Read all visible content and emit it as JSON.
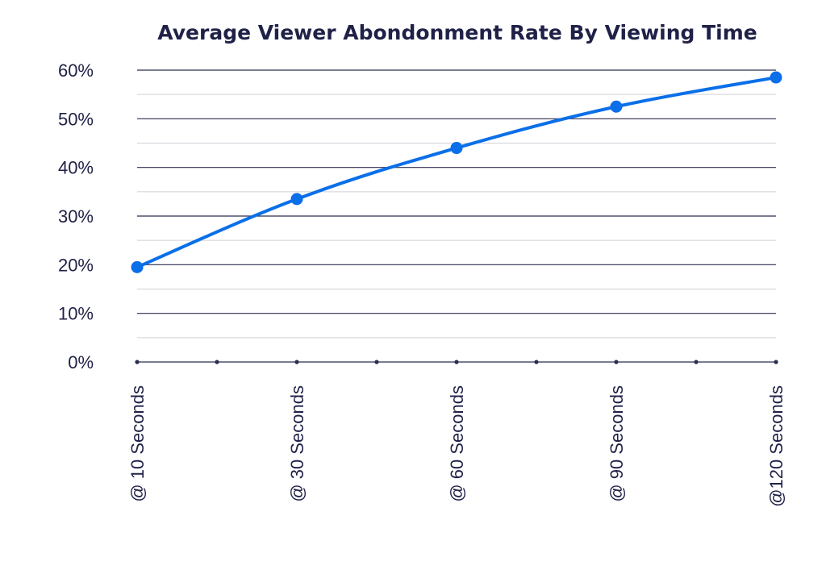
{
  "chart_data": {
    "type": "line",
    "title": "Average Viewer Abondonment Rate By Viewing Time",
    "xlabel": "",
    "ylabel": "",
    "categories": [
      "@ 10 Seconds",
      "@ 30 Seconds",
      "@ 60 Seconds",
      "@ 90 Seconds",
      "@120 Seconds"
    ],
    "series": [
      {
        "values": [
          19.5,
          33.5,
          44,
          52.5,
          58.5
        ]
      }
    ],
    "ylim": [
      0,
      60
    ],
    "yticks": [
      "0%",
      "10%",
      "20%",
      "30%",
      "40%",
      "50%",
      "60%"
    ],
    "grid": true,
    "legend": "none",
    "colors": {
      "line": "#0a6fe8",
      "grid_major": "#2b2d4f",
      "grid_minor": "#d0d0d8",
      "text": "#1f2147"
    }
  }
}
